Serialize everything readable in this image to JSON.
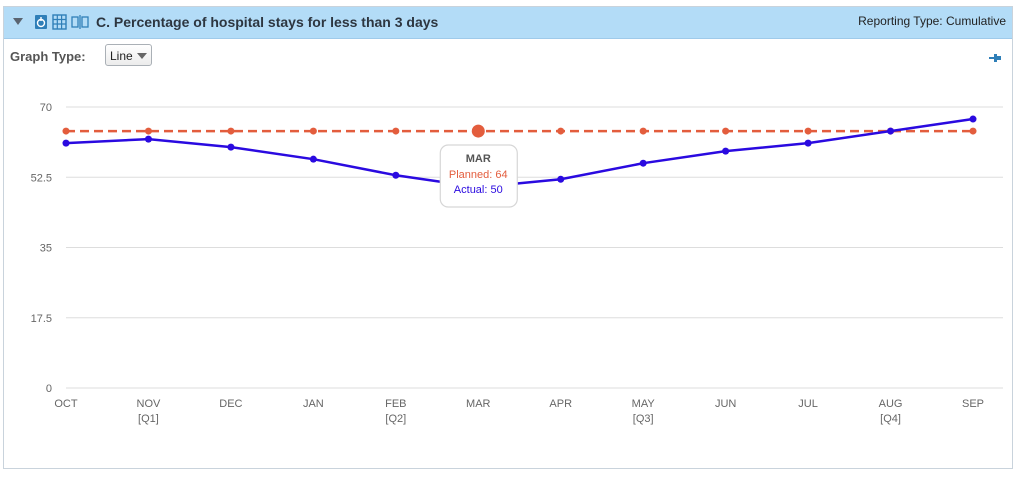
{
  "header": {
    "title": "C. Percentage of hospital stays for less than 3 days",
    "reporting_type": "Reporting Type: Cumulative",
    "icons": [
      "chevron-down-icon",
      "export-icon",
      "grid-icon",
      "compare-icon"
    ]
  },
  "controls": {
    "graph_type_label": "Graph Type:",
    "graph_type_value": "Line",
    "pin_icon": "pin-icon"
  },
  "colors": {
    "planned": "#e35d3d",
    "actual": "#2a0ae0",
    "header_bg": "#b3dcf7",
    "grid": "#dddddd"
  },
  "chart_data": {
    "type": "line",
    "categories": [
      "OCT",
      "NOV",
      "DEC",
      "JAN",
      "FEB",
      "MAR",
      "APR",
      "MAY",
      "JUN",
      "JUL",
      "AUG",
      "SEP"
    ],
    "quarter_labels": [
      "",
      "[Q1]",
      "",
      "",
      "[Q2]",
      "",
      "",
      "[Q3]",
      "",
      "",
      "[Q4]",
      ""
    ],
    "yticks": [
      "0",
      "17.5",
      "35",
      "52.5",
      "70"
    ],
    "ylim": [
      0,
      70
    ],
    "series": [
      {
        "name": "Planned",
        "style": "dashed",
        "color": "#e35d3d",
        "values": [
          64,
          64,
          64,
          64,
          64,
          64,
          64,
          64,
          64,
          64,
          64,
          64
        ]
      },
      {
        "name": "Actual",
        "style": "solid",
        "color": "#2a0ae0",
        "values": [
          61,
          62,
          60,
          57,
          53,
          50,
          52,
          56,
          59,
          61,
          64,
          67
        ]
      }
    ],
    "tooltip": {
      "category": "MAR",
      "planned_text": "Planned: 64",
      "actual_text": "Actual: 50"
    },
    "grid": true,
    "legend": "none"
  }
}
